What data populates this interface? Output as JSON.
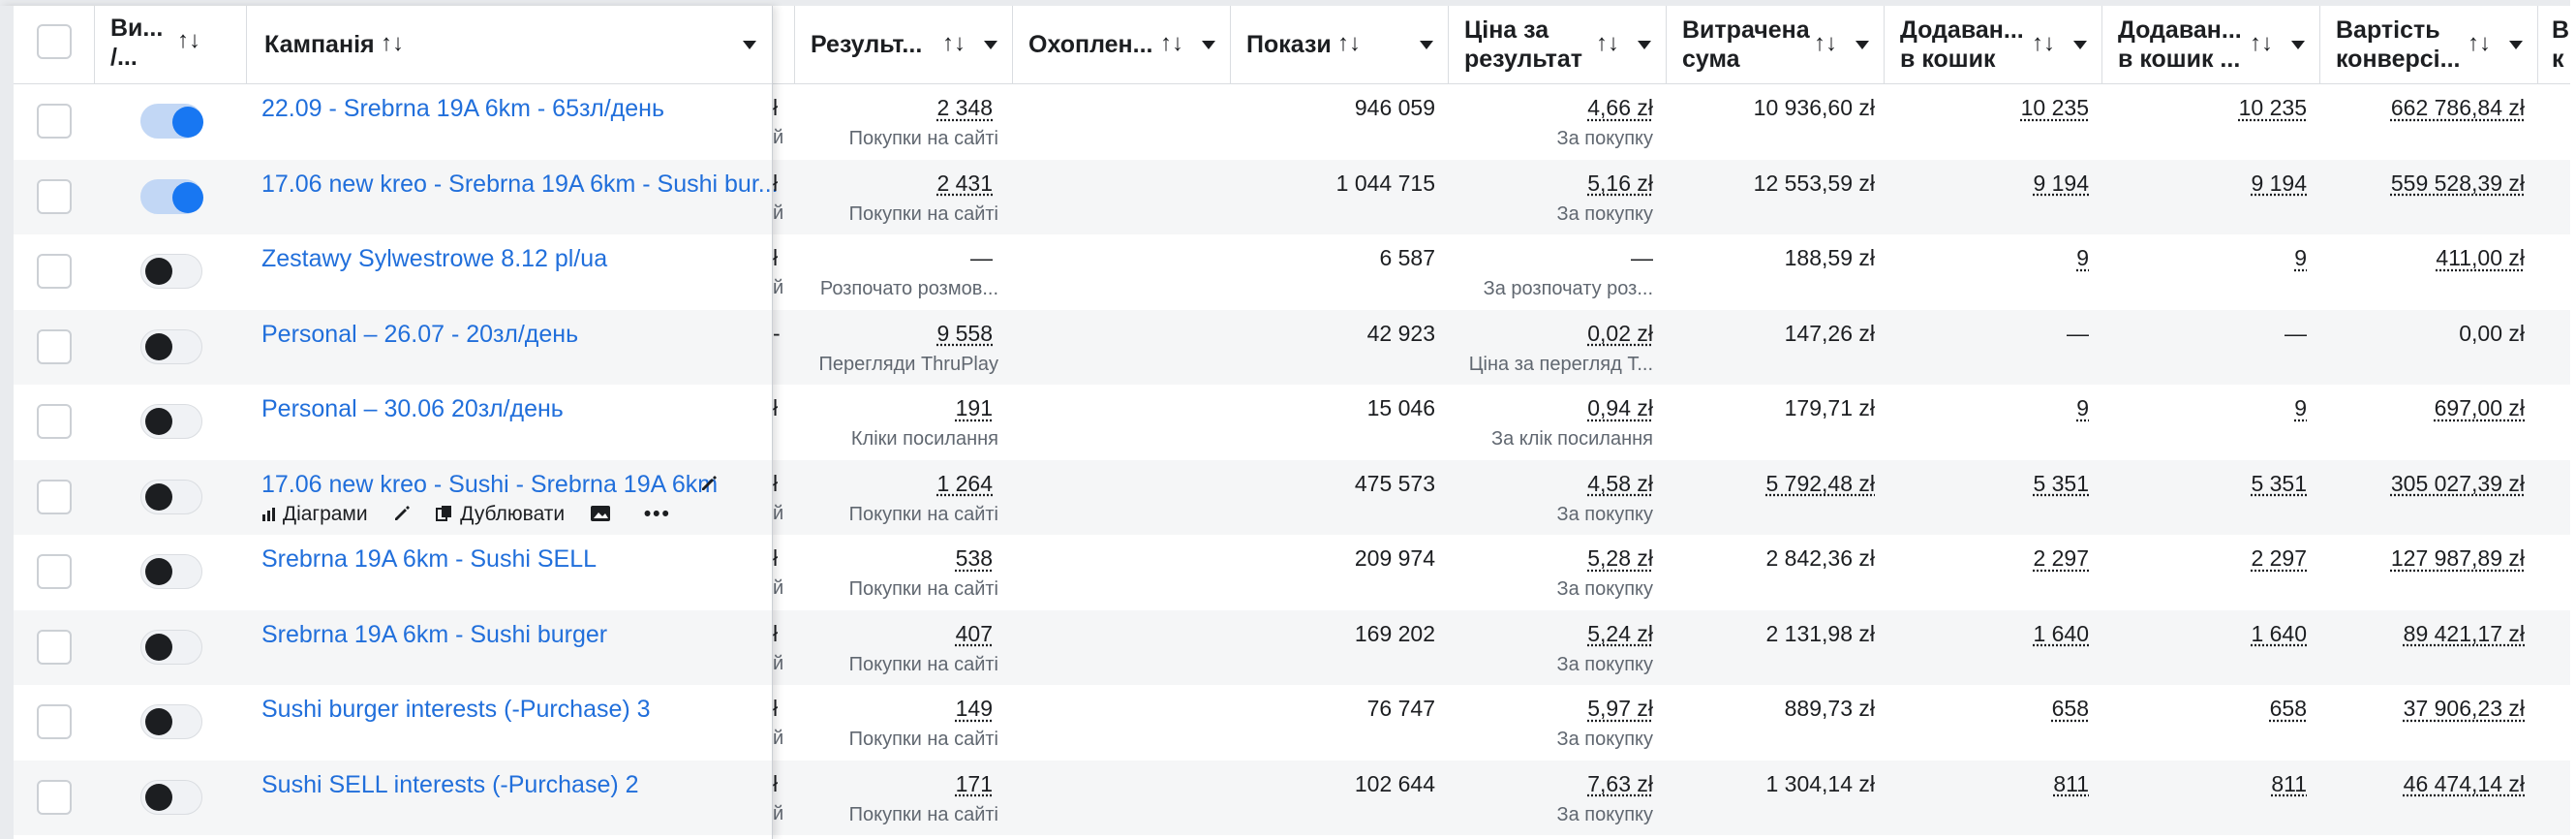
{
  "headers": {
    "delivery": "Ви... /...",
    "campaign": "Кампанія",
    "results": "Результ...",
    "reach": "Охоплен...",
    "impressions": "Покази",
    "cost_per_result_1": "Ціна за",
    "cost_per_result_2": "результат",
    "amount_spent_1": "Витрачена",
    "amount_spent_2": "сума",
    "adds_to_cart_1": "Додаван...",
    "adds_to_cart_2": "в кошик",
    "adds_to_cart_b_1": "Додаван...",
    "adds_to_cart_b_2": "в кошик ...",
    "conversion_value_1": "Вартість",
    "conversion_value_2": "конверсі...",
    "edge_1": "В",
    "edge_2": "к"
  },
  "sort_icon": "↑↓",
  "row_tools": {
    "charts": "Діаграми",
    "duplicate": "Дублювати",
    "more": "•••"
  },
  "rows": [
    {
      "name": "22.09 - Srebrna 19A 6km - 65зл/день",
      "on": true,
      "result": "2 348",
      "result_sub": "Покупки на сайті",
      "reach": "",
      "impressions": "946 059",
      "cpr": "4,66 zł",
      "cpr_sub": "За покупку",
      "spent": "10 936,60 zł",
      "atc": "10 235",
      "atc2": "10 235",
      "value": "662 786,84 zł",
      "edge_top": "ł",
      "edge_bot": "й"
    },
    {
      "name": "17.06 new kreo - Srebrna 19A 6km - Sushi bur...",
      "on": true,
      "result": "2 431",
      "result_sub": "Покупки на сайті",
      "reach": "",
      "impressions": "1 044 715",
      "cpr": "5,16 zł",
      "cpr_sub": "За покупку",
      "spent": "12 553,59 zł",
      "atc": "9 194",
      "atc2": "9 194",
      "value": "559 528,39 zł",
      "edge_top": "ł",
      "edge_bot": "й"
    },
    {
      "name": "Zestawy Sylwestrowe 8.12 pl/ua",
      "on": false,
      "result": "—",
      "result_sub": "Розпочато розмов...",
      "reach": "",
      "impressions": "6 587",
      "cpr": "—",
      "cpr_sub": "За розпочату роз...",
      "spent": "188,59 zł",
      "atc": "9",
      "atc2": "9",
      "value": "411,00 zł",
      "edge_top": "ł",
      "edge_bot": "й"
    },
    {
      "name": "Personal – 26.07 - 20зл/день",
      "on": false,
      "result": "9 558",
      "result_sub": "Перегляди ThruPlay",
      "reach": "",
      "impressions": "42 923",
      "cpr": "0,02 zł",
      "cpr_sub": "Ціна за перегляд Т...",
      "spent": "147,26 zł",
      "atc": "—",
      "atc2": "—",
      "value": "0,00 zł",
      "edge_top": "-",
      "edge_bot": ""
    },
    {
      "name": "Personal – 30.06 20зл/день",
      "on": false,
      "result": "191",
      "result_sub": "Кліки посилання",
      "reach": "",
      "impressions": "15 046",
      "cpr": "0,94 zł",
      "cpr_sub": "За клік посилання",
      "spent": "179,71 zł",
      "atc": "9",
      "atc2": "9",
      "value": "697,00 zł",
      "edge_top": "ł",
      "edge_bot": ""
    },
    {
      "name": "17.06 new kreo - Sushi - Srebrna 19A 6km",
      "on": false,
      "result": "1 264",
      "result_sub": "Покупки на сайті",
      "reach": "",
      "impressions": "475 573",
      "cpr": "4,58 zł",
      "cpr_sub": "За покупку",
      "spent": "5 792,48 zł",
      "atc": "5 351",
      "atc2": "5 351",
      "value": "305 027,39 zł",
      "edge_top": "ł",
      "edge_bot": "й",
      "hover": true
    },
    {
      "name": "Srebrna 19A 6km - Sushi SELL",
      "on": false,
      "result": "538",
      "result_sub": "Покупки на сайті",
      "reach": "",
      "impressions": "209 974",
      "cpr": "5,28 zł",
      "cpr_sub": "За покупку",
      "spent": "2 842,36 zł",
      "atc": "2 297",
      "atc2": "2 297",
      "value": "127 987,89 zł",
      "edge_top": "ł",
      "edge_bot": "й"
    },
    {
      "name": "Srebrna 19A 6km - Sushi burger",
      "on": false,
      "result": "407",
      "result_sub": "Покупки на сайті",
      "reach": "",
      "impressions": "169 202",
      "cpr": "5,24 zł",
      "cpr_sub": "За покупку",
      "spent": "2 131,98 zł",
      "atc": "1 640",
      "atc2": "1 640",
      "value": "89 421,17 zł",
      "edge_top": "ł",
      "edge_bot": "й"
    },
    {
      "name": "Sushi burger interests (-Purchase) 3",
      "on": false,
      "result": "149",
      "result_sub": "Покупки на сайті",
      "reach": "",
      "impressions": "76 747",
      "cpr": "5,97 zł",
      "cpr_sub": "За покупку",
      "spent": "889,73 zł",
      "atc": "658",
      "atc2": "658",
      "value": "37 906,23 zł",
      "edge_top": "ł",
      "edge_bot": "й"
    },
    {
      "name": "Sushi SELL interests (-Purchase) 2",
      "on": false,
      "result": "171",
      "result_sub": "Покупки на сайті",
      "reach": "",
      "impressions": "102 644",
      "cpr": "7,63 zł",
      "cpr_sub": "За покупку",
      "spent": "1 304,14 zł",
      "atc": "811",
      "atc2": "811",
      "value": "46 474,14 zł",
      "edge_top": "ł",
      "edge_bot": "й"
    }
  ]
}
